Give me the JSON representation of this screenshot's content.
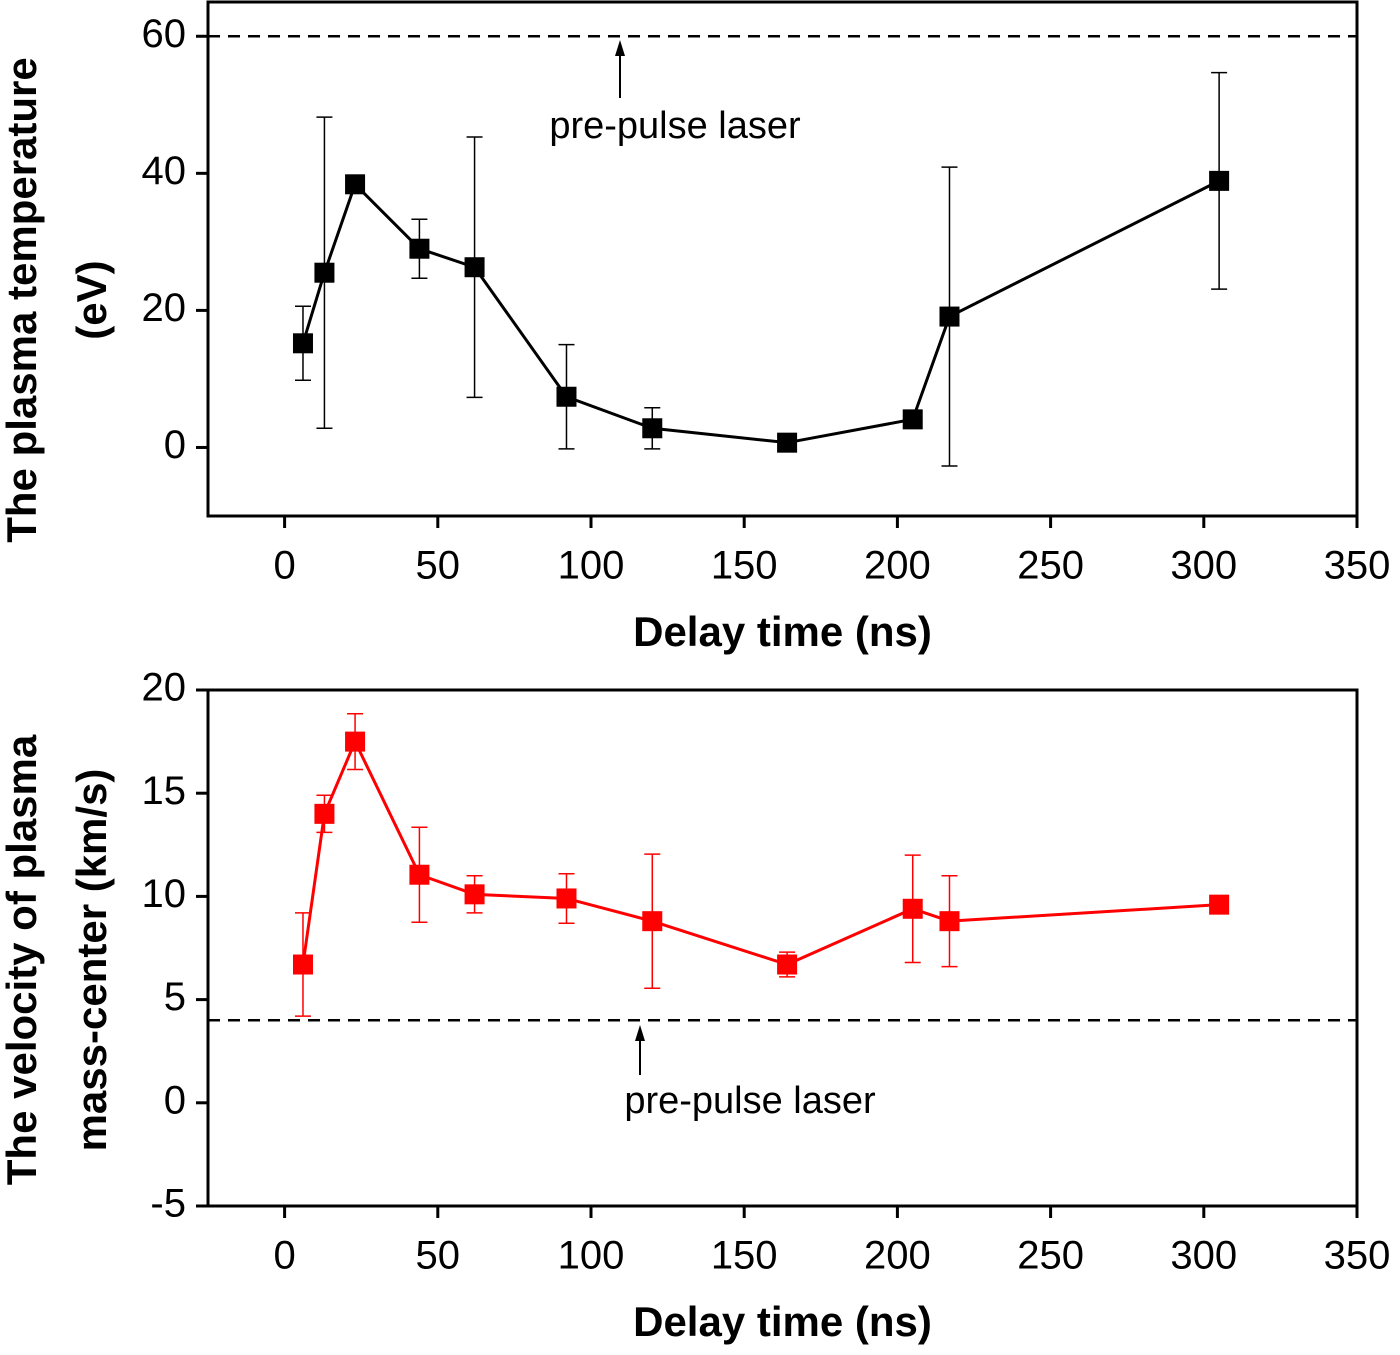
{
  "chart_data": [
    {
      "type": "line",
      "x_label": "Delay time (ns)",
      "y_label": [
        "The plasma temperature",
        "(eV)"
      ],
      "xlim": [
        -25,
        350
      ],
      "xticks": [
        0,
        50,
        100,
        150,
        200,
        250,
        300,
        350
      ],
      "ylim": [
        -10,
        65
      ],
      "yticks": [
        0,
        20,
        40,
        60
      ],
      "x": [
        6,
        13,
        23,
        44,
        62,
        92,
        120,
        164,
        205,
        217,
        305
      ],
      "series": [
        {
          "color": "#000000",
          "values": [
            15.2,
            25.5,
            38.4,
            29.0,
            26.3,
            7.4,
            2.8,
            0.7,
            4.1,
            19.1,
            38.9
          ],
          "errors": [
            5.4,
            22.7,
            null,
            4.3,
            19.0,
            7.6,
            3.0,
            null,
            null,
            21.8,
            15.8
          ]
        }
      ],
      "reference_line": {
        "value": 60,
        "label": "pre-pulse laser"
      }
    },
    {
      "type": "line",
      "x_label": "Delay time (ns)",
      "y_label": [
        "The velocity of plasma",
        "mass-center (km/s)"
      ],
      "xlim": [
        -25,
        350
      ],
      "xticks": [
        0,
        50,
        100,
        150,
        200,
        250,
        300,
        350
      ],
      "ylim": [
        -5,
        20
      ],
      "yticks": [
        -5,
        0,
        5,
        10,
        15,
        20
      ],
      "x": [
        6,
        13,
        23,
        44,
        62,
        92,
        120,
        164,
        205,
        217,
        305
      ],
      "series": [
        {
          "color": "#ff0000",
          "values": [
            6.7,
            14.0,
            17.5,
            11.05,
            10.1,
            9.9,
            8.8,
            6.7,
            9.4,
            8.8,
            9.6
          ],
          "errors": [
            2.5,
            0.9,
            1.35,
            2.3,
            0.9,
            1.2,
            3.25,
            0.6,
            2.6,
            2.2,
            null
          ]
        }
      ],
      "reference_line": {
        "value": 4,
        "label": "pre-pulse laser"
      }
    }
  ]
}
